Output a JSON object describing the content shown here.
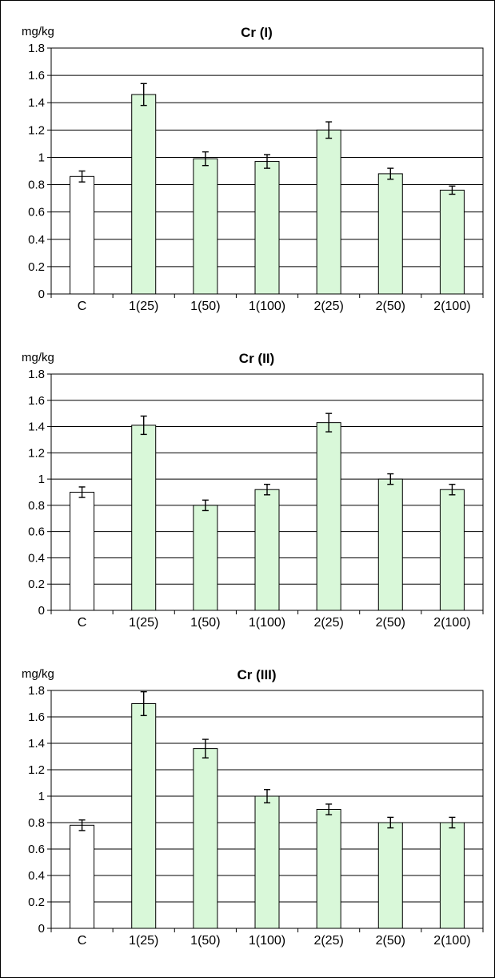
{
  "chart_data": [
    {
      "type": "bar",
      "title": "Cr (I)",
      "unit_label": "mg/kg",
      "categories": [
        "C",
        "1(25)",
        "1(50)",
        "1(100)",
        "2(25)",
        "2(50)",
        "2(100)"
      ],
      "values": [
        0.86,
        1.46,
        0.99,
        0.97,
        1.2,
        0.88,
        0.76
      ],
      "errors": [
        0.04,
        0.08,
        0.05,
        0.05,
        0.06,
        0.04,
        0.03
      ],
      "ylim": [
        0,
        1.8
      ],
      "yticks": [
        "0",
        "0.2",
        "0.4",
        "0.6",
        "0.8",
        "1",
        "1.2",
        "1.4",
        "1.6",
        "1.8"
      ],
      "grid": true
    },
    {
      "type": "bar",
      "title": "Cr (II)",
      "unit_label": "mg/kg",
      "categories": [
        "C",
        "1(25)",
        "1(50)",
        "1(100)",
        "2(25)",
        "2(50)",
        "2(100)"
      ],
      "values": [
        0.9,
        1.41,
        0.8,
        0.92,
        1.43,
        1.0,
        0.92
      ],
      "errors": [
        0.04,
        0.07,
        0.04,
        0.04,
        0.07,
        0.04,
        0.04
      ],
      "ylim": [
        0,
        1.8
      ],
      "yticks": [
        "0",
        "0.2",
        "0.4",
        "0.6",
        "0.8",
        "1",
        "1.2",
        "1.4",
        "1.6",
        "1.8"
      ],
      "grid": true
    },
    {
      "type": "bar",
      "title": "Cr (III)",
      "unit_label": "mg/kg",
      "categories": [
        "C",
        "1(25)",
        "1(50)",
        "1(100)",
        "2(25)",
        "2(50)",
        "2(100)"
      ],
      "values": [
        0.78,
        1.7,
        1.36,
        1.0,
        0.9,
        0.8,
        0.8
      ],
      "errors": [
        0.04,
        0.09,
        0.07,
        0.05,
        0.04,
        0.04,
        0.04
      ],
      "ylim": [
        0,
        1.8
      ],
      "yticks": [
        "0",
        "0.2",
        "0.4",
        "0.6",
        "0.8",
        "1",
        "1.2",
        "1.4",
        "1.6",
        "1.8"
      ],
      "grid": true
    }
  ],
  "colors": {
    "control_bar": "#ffffff",
    "treatment_bar": "#d9f8d9",
    "bar_outline": "#000000",
    "grid": "#000000"
  }
}
